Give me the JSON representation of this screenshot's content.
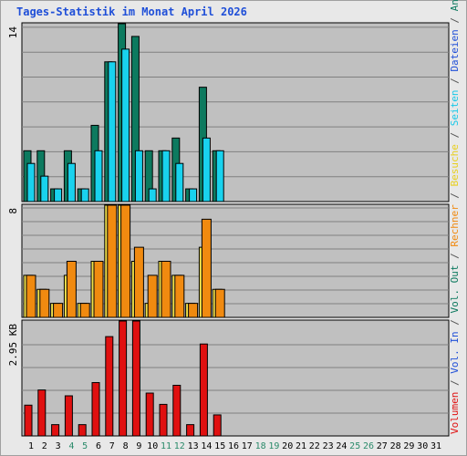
{
  "chart_data": {
    "type": "bar",
    "title": "Tages-Statistik im Monat April 2026",
    "days": [
      "1",
      "2",
      "3",
      "4",
      "5",
      "6",
      "7",
      "8",
      "9",
      "10",
      "11",
      "12",
      "13",
      "14",
      "15",
      "16",
      "17",
      "18",
      "19",
      "20",
      "21",
      "22",
      "23",
      "24",
      "25",
      "26",
      "27",
      "28",
      "29",
      "30",
      "31"
    ],
    "weekend_days": [
      "4",
      "5",
      "11",
      "12",
      "18",
      "19",
      "25",
      "26"
    ],
    "panels": [
      {
        "id": "requests",
        "ymax": 14,
        "max_label": "14",
        "series": [
          {
            "name": "Anfragen",
            "color": "#0d7a5f",
            "values": [
              4,
              4,
              1,
              4,
              1,
              6,
              11,
              14,
              13,
              4,
              4,
              5,
              1,
              9,
              4,
              0,
              0,
              0,
              0,
              0,
              0,
              0,
              0,
              0,
              0,
              0,
              0,
              0,
              0,
              0,
              0
            ]
          },
          {
            "name": "Dateien",
            "color": "#1f4fd8",
            "values": [
              0,
              0,
              0,
              0,
              0,
              0,
              0,
              0,
              0,
              0,
              0,
              0,
              0,
              0,
              0,
              0,
              0,
              0,
              0,
              0,
              0,
              0,
              0,
              0,
              0,
              0,
              0,
              0,
              0,
              0,
              0
            ]
          },
          {
            "name": "Seiten",
            "color": "#19d2ee",
            "values": [
              3,
              2,
              1,
              3,
              1,
              4,
              11,
              12,
              4,
              1,
              4,
              3,
              1,
              5,
              4,
              0,
              0,
              0,
              0,
              0,
              0,
              0,
              0,
              0,
              0,
              0,
              0,
              0,
              0,
              0,
              0
            ]
          }
        ]
      },
      {
        "id": "visits",
        "ymax": 8,
        "max_label": "8",
        "series": [
          {
            "name": "Besuche",
            "color": "#f0e04a",
            "values": [
              3,
              2,
              1,
              3,
              1,
              4,
              8,
              8,
              4,
              1,
              4,
              3,
              1,
              5,
              2,
              0,
              0,
              0,
              0,
              0,
              0,
              0,
              0,
              0,
              0,
              0,
              0,
              0,
              0,
              0,
              0
            ]
          },
          {
            "name": "Rechner",
            "color": "#f08a10",
            "values": [
              3,
              2,
              1,
              4,
              1,
              4,
              8,
              8,
              5,
              3,
              4,
              3,
              1,
              7,
              2,
              0,
              0,
              0,
              0,
              0,
              0,
              0,
              0,
              0,
              0,
              0,
              0,
              0,
              0,
              0,
              0
            ]
          }
        ]
      },
      {
        "id": "volume",
        "ymax": 2.95,
        "max_label": "2.95 KB",
        "series": [
          {
            "name": "Volumen",
            "color": "#e01010",
            "values": [
              0.79,
              1.18,
              0.29,
              1.03,
              0.29,
              1.37,
              2.55,
              2.95,
              2.95,
              1.1,
              0.81,
              1.3,
              0.29,
              2.36,
              0.54,
              0,
              0,
              0,
              0,
              0,
              0,
              0,
              0,
              0,
              0,
              0,
              0,
              0,
              0,
              0,
              0
            ]
          }
        ]
      }
    ],
    "right_legend": [
      {
        "text": "Volumen",
        "color": "#e01010"
      },
      {
        "text": " / ",
        "color": "#555555"
      },
      {
        "text": "Vol. In",
        "color": "#1f4fd8"
      },
      {
        "text": " / ",
        "color": "#555555"
      },
      {
        "text": "Vol. Out",
        "color": "#0d7a5f"
      },
      {
        "text": " / ",
        "color": "#555555"
      },
      {
        "text": "Rechner",
        "color": "#f08a10"
      },
      {
        "text": " / ",
        "color": "#555555"
      },
      {
        "text": "Besuche",
        "color": "#e8d020"
      },
      {
        "text": " / ",
        "color": "#555555"
      },
      {
        "text": "Seiten",
        "color": "#19c8e8"
      },
      {
        "text": " / ",
        "color": "#555555"
      },
      {
        "text": "Dateien",
        "color": "#1f4fd8"
      },
      {
        "text": " / ",
        "color": "#555555"
      },
      {
        "text": "Anfragen",
        "color": "#0d7a5f"
      }
    ],
    "colors": {
      "title": "#1f4fd8",
      "plot_bg": "#c0c0c0",
      "grid": "#808080",
      "page_bg": "#e8e8e8",
      "weekday_label": "#000000",
      "weekend_label": "#2a8a6a"
    },
    "grid": true
  }
}
